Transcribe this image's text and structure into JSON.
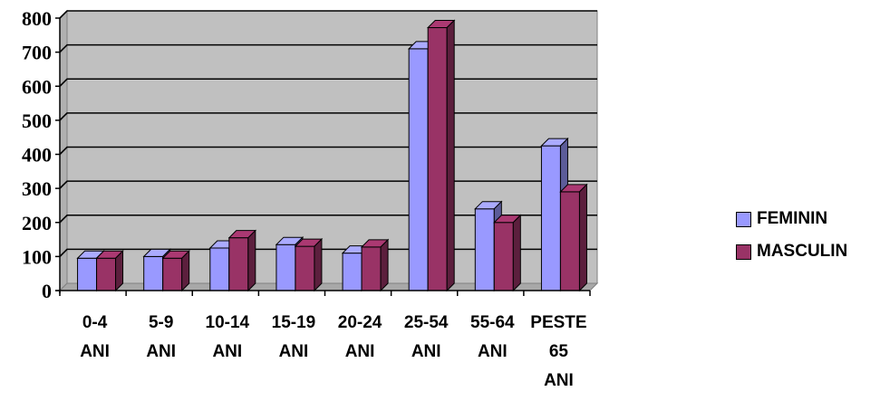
{
  "chart_data": {
    "type": "bar",
    "style": "3d-clustered-column",
    "categories": [
      [
        "0-4",
        "ANI"
      ],
      [
        "5-9",
        "ANI"
      ],
      [
        "10-14",
        "ANI"
      ],
      [
        "15-19",
        "ANI"
      ],
      [
        "20-24",
        "ANI"
      ],
      [
        "25-54",
        "ANI"
      ],
      [
        "55-64",
        "ANI"
      ],
      [
        "PESTE",
        "65",
        "ANI"
      ]
    ],
    "series": [
      {
        "name": "FEMININ",
        "color": "#9999ff",
        "values": [
          95,
          100,
          125,
          135,
          110,
          710,
          240,
          425
        ]
      },
      {
        "name": "MASCULIN",
        "color": "#993366",
        "values": [
          95,
          95,
          155,
          130,
          128,
          772,
          200,
          290
        ]
      }
    ],
    "ylim": [
      0,
      800
    ],
    "yticks": [
      0,
      100,
      200,
      300,
      400,
      500,
      600,
      700,
      800
    ],
    "grid": true,
    "plot_background": "#c0c0c0",
    "legend_position": "right"
  }
}
